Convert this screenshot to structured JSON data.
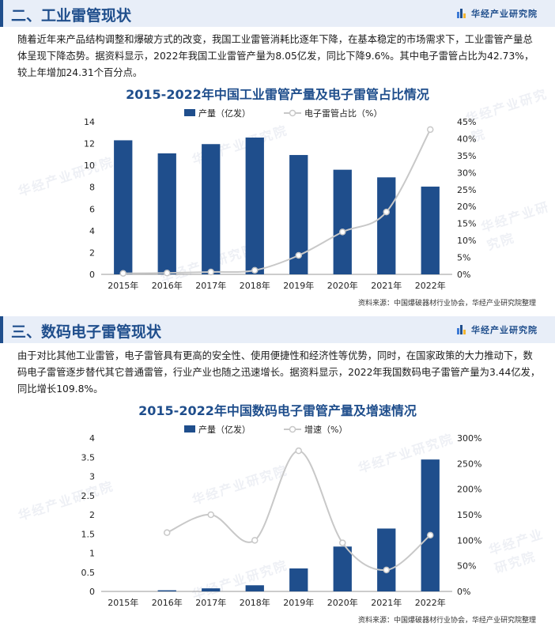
{
  "brand": "华经产业研究院",
  "watermark": "华经产业研究院",
  "section1": {
    "title": "二、工业雷管现状",
    "paragraph": "随着近年来产品结构调整和爆破方式的改变，我国工业雷管消耗比逐年下降，在基本稳定的市场需求下，工业雷管产量总体呈现下降态势。据资料显示，2022年我国工业雷管产量为8.05亿发，同比下降9.6%。其中电子雷管占比为42.73%，较上年增加24.31个百分点。"
  },
  "section2": {
    "title": "三、数码电子雷管现状",
    "paragraph": "由于对比其他工业雷管，电子雷管具有更高的安全性、使用便捷性和经济性等优势，同时，在国家政策的大力推动下，数码电子雷管逐步替代其它普通雷管，行业产业也随之迅速增长。据资料显示，2022年我国数码电子雷管产量为3.44亿发，同比增长109.8%。"
  },
  "chart_data": [
    {
      "type": "bar",
      "title": "2015-2022年中国工业雷管产量及电子雷管占比情况",
      "categories": [
        "2015年",
        "2016年",
        "2017年",
        "2018年",
        "2019年",
        "2020年",
        "2021年",
        "2022年"
      ],
      "series": [
        {
          "name": "产量（亿发）",
          "type": "bar",
          "axis": "left",
          "values": [
            12.3,
            11.1,
            11.95,
            12.55,
            10.95,
            9.6,
            8.9,
            8.05
          ]
        },
        {
          "name": "电子雷管占比（%）",
          "type": "line",
          "axis": "right",
          "values": [
            0.3,
            0.4,
            0.7,
            1.2,
            5.6,
            12.5,
            18.4,
            42.7
          ]
        }
      ],
      "left_axis": {
        "ylim": [
          0,
          14
        ],
        "ticks": [
          "0",
          "2",
          "4",
          "6",
          "8",
          "10",
          "12",
          "14"
        ]
      },
      "right_axis": {
        "ylim": [
          0,
          45
        ],
        "ticks": [
          "0%",
          "5%",
          "10%",
          "15%",
          "20%",
          "25%",
          "30%",
          "35%",
          "40%",
          "45%"
        ]
      },
      "legend": "top",
      "grid": false,
      "source": "资料来源：中国爆破器材行业协会，华经产业研究院整理",
      "colors": {
        "bar": "#1f4e8c",
        "line": "#c8c8c8"
      }
    },
    {
      "type": "bar",
      "title": "2015-2022年中国数码电子雷管产量及增速情况",
      "categories": [
        "2015年",
        "2016年",
        "2017年",
        "2018年",
        "2019年",
        "2020年",
        "2021年",
        "2022年"
      ],
      "series": [
        {
          "name": "产量（亿发）",
          "type": "bar",
          "axis": "left",
          "values": [
            0,
            0.03,
            0.08,
            0.16,
            0.6,
            1.17,
            1.64,
            3.44
          ]
        },
        {
          "name": "增速（%）",
          "type": "line",
          "axis": "right",
          "values": [
            null,
            115,
            150,
            100,
            275,
            95,
            42,
            110
          ]
        }
      ],
      "left_axis": {
        "ylim": [
          0,
          4
        ],
        "ticks": [
          "0",
          "0.5",
          "1",
          "1.5",
          "2",
          "2.5",
          "3",
          "3.5",
          "4"
        ]
      },
      "right_axis": {
        "ylim": [
          0,
          300
        ],
        "ticks": [
          "0%",
          "50%",
          "100%",
          "150%",
          "200%",
          "250%",
          "300%"
        ]
      },
      "legend": "top",
      "grid": false,
      "source": "资料来源：中国爆破器材行业协会，华经产业研究院整理",
      "colors": {
        "bar": "#1f4e8c",
        "line": "#c8c8c8"
      }
    }
  ]
}
